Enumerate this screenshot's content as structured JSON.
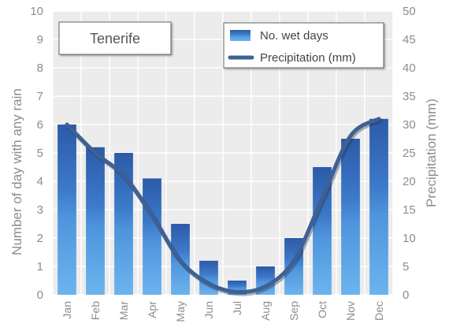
{
  "chart_data": {
    "type": "bar",
    "title": "Tenerife",
    "categories": [
      "Jan",
      "Feb",
      "Mar",
      "Apr",
      "May",
      "Jun",
      "Jul",
      "Aug",
      "Sep",
      "Oct",
      "Nov",
      "Dec"
    ],
    "series": [
      {
        "name": "No. wet days",
        "type": "bar",
        "axis": "left",
        "values": [
          6.0,
          5.2,
          5.0,
          4.1,
          2.5,
          1.2,
          0.5,
          1.0,
          2.0,
          4.5,
          5.5,
          6.2
        ]
      },
      {
        "name": "Precipitation (mm)",
        "type": "line",
        "axis": "right",
        "values": [
          30,
          25,
          21,
          14,
          6,
          2,
          0.5,
          1.5,
          6,
          17,
          28,
          31
        ]
      }
    ],
    "ylabel": "Number of day with any rain",
    "ylabel_right": "Precipitation (mm)",
    "ylim": [
      0,
      10
    ],
    "ylim_right": [
      0,
      50
    ],
    "yticks": [
      "0",
      "1",
      "2",
      "3",
      "4",
      "5",
      "6",
      "7",
      "8",
      "9",
      "10"
    ],
    "yticks_right": [
      "0",
      "5",
      "10",
      "15",
      "20",
      "25",
      "30",
      "35",
      "40",
      "45",
      "50"
    ],
    "grid": true,
    "legend_position": "top-right",
    "colors": {
      "bar_top": "#2f5dab",
      "bar_mid": "#3f7fd0",
      "bar_bottom": "#65aeea",
      "line": "#3f6094",
      "plot_bg": "#ececec",
      "grid": "#ffffff",
      "axis_text": "#8c8c8c"
    }
  }
}
